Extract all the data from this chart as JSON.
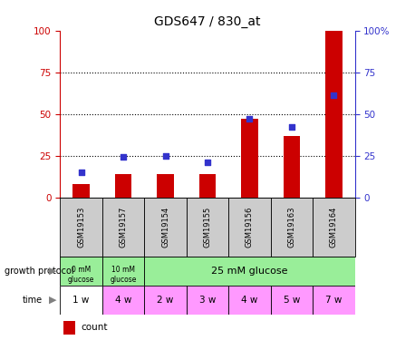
{
  "title": "GDS647 / 830_at",
  "samples": [
    "GSM19153",
    "GSM19157",
    "GSM19154",
    "GSM19155",
    "GSM19156",
    "GSM19163",
    "GSM19164"
  ],
  "count_values": [
    8,
    14,
    14,
    14,
    47,
    37,
    100
  ],
  "percentile_values": [
    15,
    24,
    25,
    21,
    47,
    42,
    61
  ],
  "time_labels": [
    "1 w",
    "4 w",
    "2 w",
    "3 w",
    "4 w",
    "5 w",
    "7 w"
  ],
  "time_colors": [
    "#ffffff",
    "#ff99ff",
    "#ff99ff",
    "#ff99ff",
    "#ff99ff",
    "#ff99ff",
    "#ff99ff"
  ],
  "green_color": "#99ee99",
  "time_color": "#ff99ff",
  "bar_color": "#cc0000",
  "dot_color": "#3333cc",
  "ymax": 100,
  "yticks": [
    0,
    25,
    50,
    75,
    100
  ],
  "left_axis_color": "#cc0000",
  "right_axis_color": "#3333cc",
  "sample_bg": "#cccccc"
}
